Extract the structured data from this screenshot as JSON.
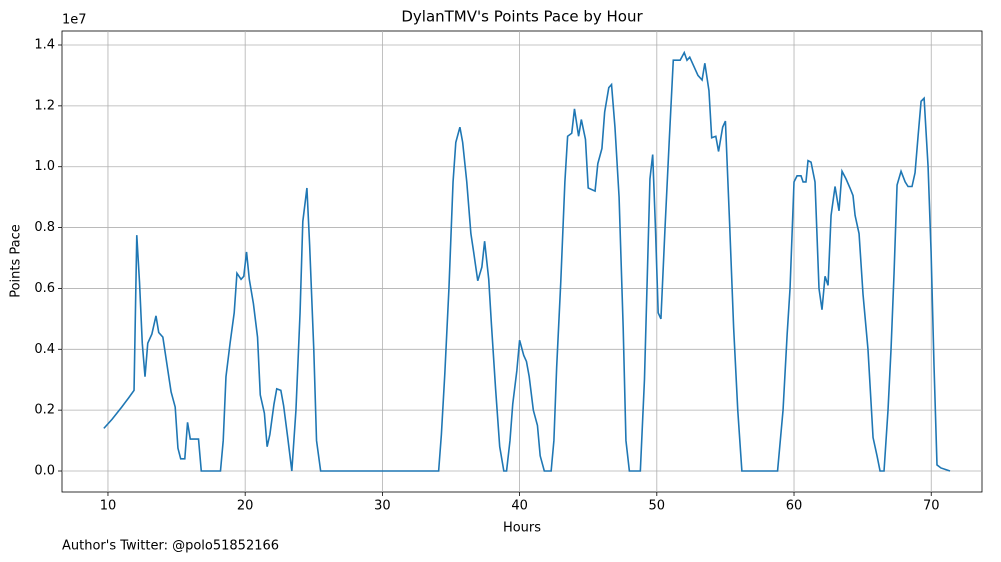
{
  "chart_data": {
    "type": "line",
    "title": "DylanTMV's Points Pace by Hour",
    "x_label": "Hours",
    "y_label": "Points Pace",
    "y_offset_label": "1e7",
    "footer": "Author's Twitter: @polo51852166",
    "grid": true,
    "xlim": [
      6.65,
      73.7
    ],
    "ylim": [
      -0.069,
      1.446
    ],
    "xticks": [
      10,
      20,
      30,
      40,
      50,
      60,
      70
    ],
    "yticks": [
      {
        "value": 0,
        "label": "0.0"
      },
      0.2,
      0.4,
      0.6,
      0.8,
      {
        "value": 1,
        "label": "1.0"
      },
      1.2,
      1.4
    ],
    "series": [
      {
        "name": "Points Pace",
        "color": "#1f77b4",
        "x": [
          9.7,
          10.3,
          11.0,
          11.5,
          11.9,
          12.1,
          12.3,
          12.5,
          12.7,
          12.9,
          13.2,
          13.5,
          13.7,
          14.0,
          14.3,
          14.6,
          14.9,
          15.1,
          15.3,
          15.6,
          15.8,
          16.0,
          16.3,
          16.6,
          16.8,
          17.2,
          18.2,
          18.4,
          18.6,
          18.9,
          19.2,
          19.4,
          19.7,
          19.9,
          20.1,
          20.3,
          20.6,
          20.9,
          21.1,
          21.4,
          21.6,
          21.8,
          22.1,
          22.3,
          22.6,
          22.8,
          23.1,
          23.4,
          23.7,
          24.0,
          24.2,
          24.5,
          24.7,
          25.0,
          25.2,
          25.5,
          34.1,
          34.3,
          34.55,
          34.85,
          35.15,
          35.35,
          35.65,
          35.85,
          36.15,
          36.45,
          36.65,
          36.95,
          37.25,
          37.45,
          37.75,
          37.95,
          38.25,
          38.55,
          38.85,
          39.05,
          39.3,
          39.5,
          39.8,
          40.0,
          40.3,
          40.5,
          40.7,
          41.0,
          41.3,
          41.5,
          41.8,
          42.3,
          42.5,
          42.7,
          43.0,
          43.3,
          43.5,
          43.8,
          44.0,
          44.3,
          44.5,
          44.8,
          45.0,
          45.5,
          45.7,
          46.0,
          46.2,
          46.5,
          46.7,
          46.95,
          47.25,
          47.55,
          47.75,
          48.0,
          48.7,
          48.8,
          49.1,
          49.5,
          49.7,
          49.9,
          50.1,
          50.3,
          50.6,
          50.9,
          51.2,
          51.5,
          51.7,
          52.0,
          52.2,
          52.4,
          52.7,
          53.0,
          53.3,
          53.5,
          53.8,
          54.0,
          54.3,
          54.5,
          54.8,
          55.0,
          55.3,
          55.6,
          55.9,
          56.2,
          58.8,
          59.2,
          59.5,
          59.71,
          60.0,
          60.22,
          60.51,
          60.66,
          60.87,
          61.02,
          61.24,
          61.53,
          61.82,
          62.04,
          62.26,
          62.48,
          62.7,
          62.99,
          63.28,
          63.5,
          63.79,
          64.08,
          64.3,
          64.45,
          64.74,
          65.03,
          65.39,
          65.76,
          66.05,
          66.27,
          66.56,
          66.85,
          67.07,
          67.29,
          67.51,
          67.8,
          68.1,
          68.31,
          68.6,
          68.82,
          69.04,
          69.26,
          69.48,
          69.77,
          69.99,
          70.2,
          70.42,
          70.71,
          71.37
        ],
        "values": [
          0.14,
          0.17,
          0.21,
          0.24,
          0.265,
          0.775,
          0.62,
          0.42,
          0.31,
          0.42,
          0.45,
          0.51,
          0.455,
          0.44,
          0.35,
          0.26,
          0.21,
          0.075,
          0.04,
          0.04,
          0.16,
          0.105,
          0.105,
          0.105,
          0,
          0,
          0,
          0.1,
          0.31,
          0.42,
          0.52,
          0.65,
          0.63,
          0.64,
          0.72,
          0.63,
          0.55,
          0.44,
          0.25,
          0.19,
          0.08,
          0.12,
          0.22,
          0.27,
          0.265,
          0.215,
          0.11,
          0,
          0.2,
          0.52,
          0.82,
          0.93,
          0.74,
          0.4,
          0.1,
          0,
          0,
          0.12,
          0.32,
          0.6,
          0.95,
          1.08,
          1.13,
          1.08,
          0.95,
          0.78,
          0.72,
          0.625,
          0.67,
          0.755,
          0.63,
          0.48,
          0.27,
          0.08,
          0,
          0,
          0.1,
          0.22,
          0.33,
          0.43,
          0.38,
          0.36,
          0.31,
          0.2,
          0.15,
          0.05,
          0,
          0,
          0.1,
          0.34,
          0.62,
          0.95,
          1.1,
          1.11,
          1.19,
          1.1,
          1.155,
          1.09,
          0.93,
          0.92,
          1.01,
          1.06,
          1.18,
          1.26,
          1.27,
          1.13,
          0.9,
          0.47,
          0.1,
          0,
          0,
          0,
          0.3,
          0.96,
          1.04,
          0.8,
          0.52,
          0.5,
          0.8,
          1.08,
          1.35,
          1.35,
          1.35,
          1.375,
          1.35,
          1.36,
          1.33,
          1.3,
          1.285,
          1.34,
          1.25,
          1.095,
          1.1,
          1.05,
          1.13,
          1.15,
          0.82,
          0.47,
          0.2,
          0,
          0,
          0.2,
          0.45,
          0.6,
          0.95,
          0.97,
          0.97,
          0.95,
          0.95,
          1.02,
          1.015,
          0.95,
          0.6,
          0.53,
          0.64,
          0.61,
          0.84,
          0.935,
          0.855,
          0.985,
          0.96,
          0.93,
          0.905,
          0.84,
          0.78,
          0.58,
          0.4,
          0.11,
          0.05,
          0,
          0,
          0.2,
          0.4,
          0.65,
          0.94,
          0.985,
          0.95,
          0.935,
          0.935,
          0.98,
          1.1,
          1.215,
          1.225,
          1.0,
          0.72,
          0.35,
          0.02,
          0.01,
          0
        ]
      }
    ]
  }
}
